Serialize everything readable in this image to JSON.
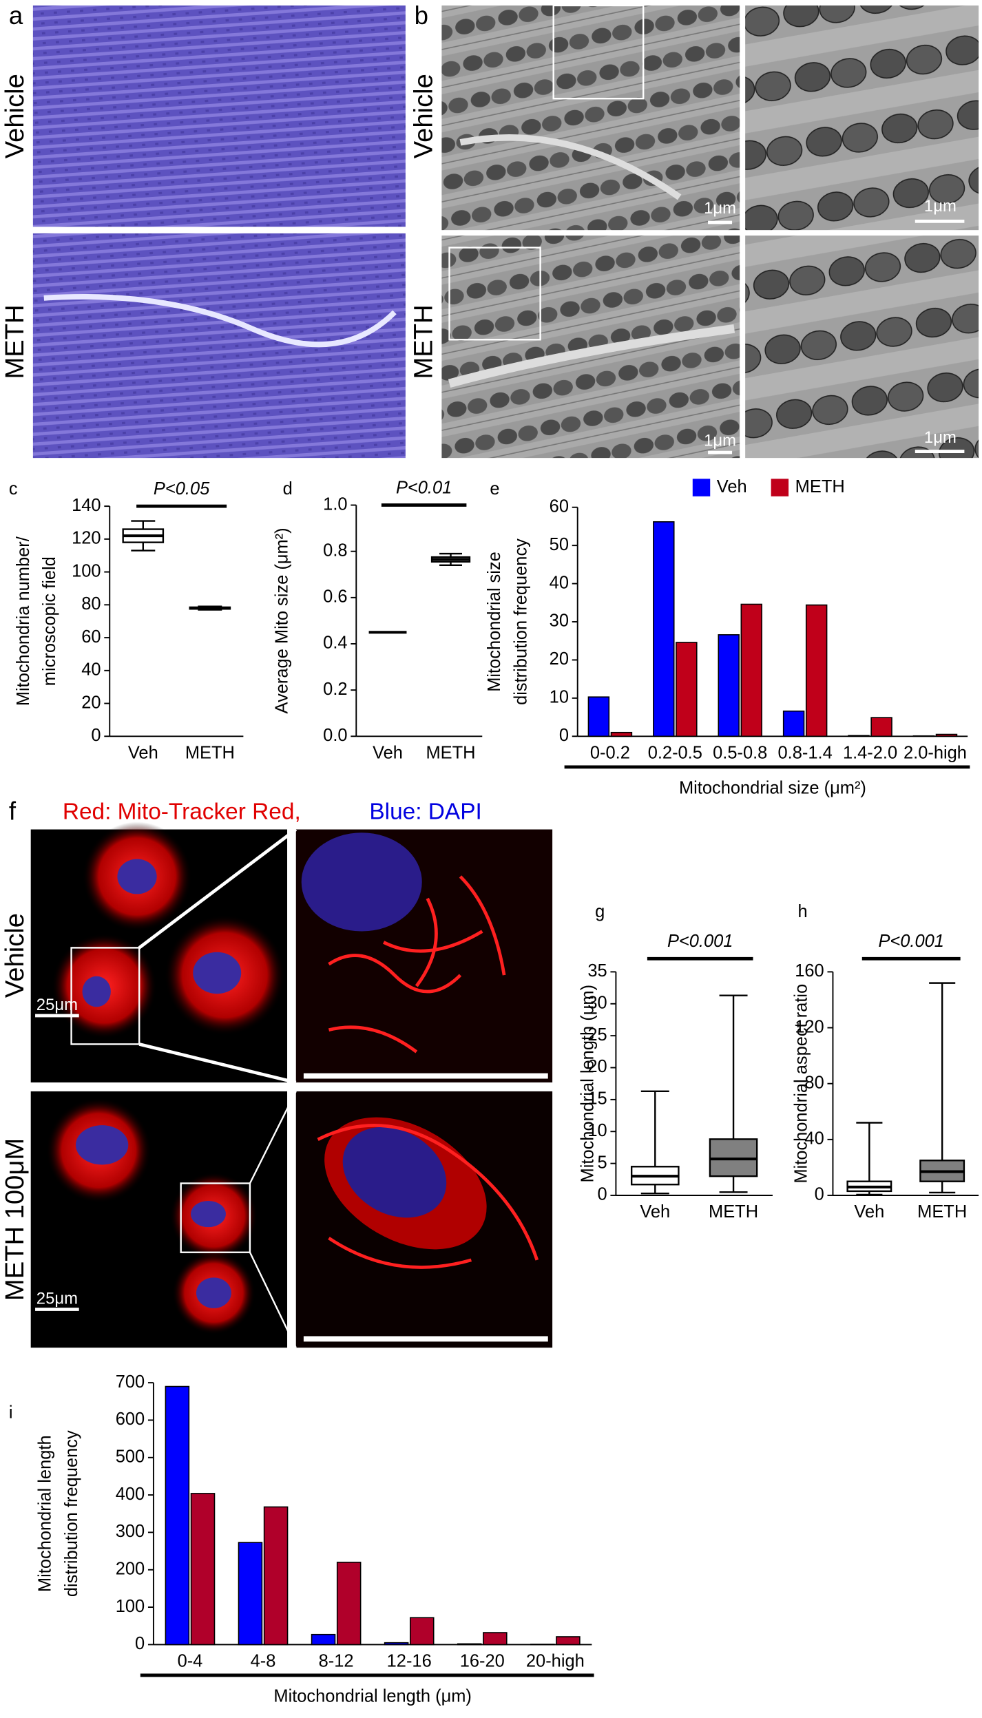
{
  "figure": {
    "panel_a": {
      "label": "a",
      "rows": [
        "Vehicle",
        "METH"
      ]
    },
    "panel_b": {
      "label": "b",
      "rows": [
        "Vehicle",
        "METH"
      ],
      "scale_bar": "1μm"
    },
    "panel_f": {
      "label": "f",
      "title_red": "Red: Mito-Tracker Red,",
      "title_blue": "Blue: DAPI",
      "rows": [
        "Vehicle",
        "METH 100μM"
      ],
      "scale_bar": "25μm"
    }
  },
  "chart_data": [
    {
      "type": "box",
      "label": "c",
      "ylabel": [
        "Mitochondria number/",
        "microscopic field"
      ],
      "categories": [
        "Veh",
        "METH"
      ],
      "boxes": [
        {
          "min": 113,
          "q1": 118,
          "median": 122,
          "q3": 126,
          "max": 131,
          "color": "#ffffff"
        },
        {
          "min": 77,
          "q1": 77.5,
          "median": 78,
          "q3": 78.5,
          "max": 79,
          "color": "#ffffff"
        }
      ],
      "annotation": "P<0.05",
      "ylim": [
        0,
        140
      ],
      "yticks": [
        0,
        20,
        40,
        60,
        80,
        100,
        120,
        140
      ]
    },
    {
      "type": "box",
      "label": "d",
      "ylabel": [
        "Average Mito size (μm²)"
      ],
      "categories": [
        "Veh",
        "METH"
      ],
      "boxes": [
        {
          "min": 0.45,
          "q1": 0.45,
          "median": 0.45,
          "q3": 0.45,
          "max": 0.45,
          "color": "#ffffff"
        },
        {
          "min": 0.74,
          "q1": 0.755,
          "median": 0.765,
          "q3": 0.775,
          "max": 0.79,
          "color": "#ffffff"
        }
      ],
      "annotation": "P<0.01",
      "ylim": [
        0,
        1
      ],
      "yticks": [
        {
          "value": 0,
          "label": "0.0"
        },
        0.2,
        0.4,
        0.6,
        0.8,
        {
          "value": 1,
          "label": "1.0"
        }
      ]
    },
    {
      "type": "bar",
      "label": "e",
      "ylabel": [
        "Mitochondrial size",
        "distribution frequency"
      ],
      "xlabel": "Mitochondrial size (μm²)",
      "categories": [
        "0-0.2",
        "0.2-0.5",
        "0.5-0.8",
        "0.8-1.4",
        "1.4-2.0",
        "2.0-high"
      ],
      "series": [
        {
          "name": "Veh",
          "color": "#0000ff",
          "values": [
            10.3,
            56.2,
            26.6,
            6.6,
            0.2,
            0.1
          ]
        },
        {
          "name": "METH",
          "color": "#c0001a",
          "values": [
            1.0,
            24.6,
            34.6,
            34.4,
            4.9,
            0.5
          ]
        }
      ],
      "legend": "top",
      "ylim": [
        0,
        60
      ],
      "yticks": [
        0,
        10,
        20,
        30,
        40,
        50,
        60
      ]
    },
    {
      "type": "box",
      "label": "g",
      "ylabel": [
        "Mitochondrial length (μm)"
      ],
      "categories": [
        "Veh",
        "METH"
      ],
      "boxes": [
        {
          "min": 0.3,
          "q1": 1.7,
          "median": 3,
          "q3": 4.5,
          "max": 16.3,
          "color": "#ffffff"
        },
        {
          "min": 0.5,
          "q1": 3,
          "median": 5.7,
          "q3": 8.8,
          "max": 31.3,
          "color": "#808080"
        }
      ],
      "annotation": "P<0.001",
      "ylim": [
        0,
        35
      ],
      "yticks": [
        0,
        5,
        10,
        15,
        20,
        25,
        30,
        35
      ]
    },
    {
      "type": "box",
      "label": "h",
      "ylabel": [
        "Mitochondrial aspect ratio"
      ],
      "categories": [
        "Veh",
        "METH"
      ],
      "boxes": [
        {
          "min": 0.5,
          "q1": 3,
          "median": 6,
          "q3": 10,
          "max": 52,
          "color": "#ffffff"
        },
        {
          "min": 2,
          "q1": 10,
          "median": 17,
          "q3": 25,
          "max": 152,
          "color": "#808080"
        }
      ],
      "annotation": "P<0.001",
      "ylim": [
        0,
        160
      ],
      "yticks": [
        0,
        40,
        80,
        120,
        160
      ]
    },
    {
      "type": "bar",
      "label": "i",
      "ylabel": [
        "Mitochondrial length",
        "distribution frequency"
      ],
      "xlabel": "Mitochondrial length (μm)",
      "categories": [
        "0-4",
        "4-8",
        "8-12",
        "12-16",
        "16-20",
        "20-high"
      ],
      "series": [
        {
          "name": "Veh",
          "color": "#0000ff",
          "values": [
            690,
            273,
            27,
            5,
            2,
            1
          ]
        },
        {
          "name": "METH",
          "color": "#b0002a",
          "values": [
            404,
            368,
            220,
            72,
            32,
            21
          ]
        }
      ],
      "ylim": [
        0,
        700
      ],
      "yticks": [
        0,
        100,
        200,
        300,
        400,
        500,
        600,
        700
      ]
    }
  ]
}
